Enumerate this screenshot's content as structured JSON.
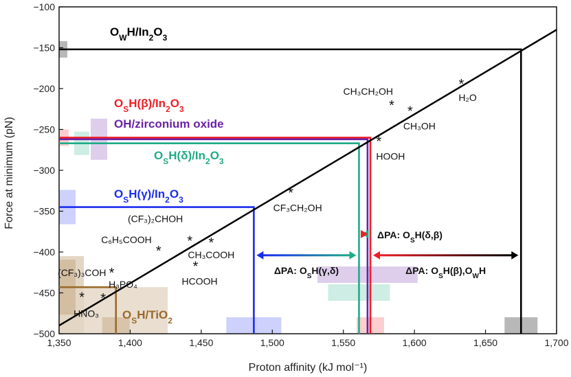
{
  "chart_data": {
    "type": "scatter",
    "xlabel": "Proton affinity (kJ mol⁻¹)",
    "ylabel": "Force at minimum (pN)",
    "xlim": [
      1350,
      1700
    ],
    "ylim": [
      -500,
      -100
    ],
    "x_ticks": [
      1350,
      1400,
      1450,
      1500,
      1550,
      1600,
      1650,
      1700
    ],
    "y_ticks": [
      -500,
      -450,
      -400,
      -350,
      -300,
      -250,
      -200,
      -150,
      -100
    ],
    "x_tick_labels": [
      "1,350",
      "1,400",
      "1,450",
      "1,500",
      "1,550",
      "1,600",
      "1,650",
      "1,700"
    ],
    "y_tick_labels": [
      "−500",
      "−450",
      "−400",
      "−350",
      "−300",
      "−250",
      "−200",
      "−150",
      "−100"
    ],
    "fit_line": {
      "x": [
        1350,
        1700
      ],
      "y": [
        -490,
        -128
      ]
    },
    "compounds": [
      {
        "label": "HNO₃",
        "x": 1366,
        "y": -456
      },
      {
        "label": "H₃PO₄",
        "x": 1381,
        "y": -457
      },
      {
        "label": "(CF₃)₃COH",
        "x": 1387,
        "y": -426
      },
      {
        "label": "C₆H₅COOH",
        "x": 1420,
        "y": -399
      },
      {
        "label": "(CF₃)₂CHOH",
        "x": 1442,
        "y": -387
      },
      {
        "label": "CH₃COOH",
        "x": 1457,
        "y": -389
      },
      {
        "label": "HCOOH",
        "x": 1446,
        "y": -418
      },
      {
        "label": "CF₃CH₂OH",
        "x": 1513,
        "y": -328
      },
      {
        "label": "HOOH",
        "x": 1575,
        "y": -265
      },
      {
        "label": "CH₃OH",
        "x": 1597,
        "y": -228
      },
      {
        "label": "CH₃CH₂OH",
        "x": 1584,
        "y": -221
      },
      {
        "label": "H₂O",
        "x": 1633,
        "y": -195
      }
    ],
    "series": [
      {
        "name": "OWH/In2O3",
        "label_main": "O",
        "label_sub": "W",
        "label_rest": "H/In",
        "label_sub2": "2",
        "label_o": "O",
        "label_sub3": "3",
        "color": "#000000",
        "y": -152,
        "x": 1675
      },
      {
        "name": "OSH(β)/In2O3",
        "label_main": "O",
        "label_sub": "S",
        "label_rest": "H(β)/In",
        "label_sub2": "2",
        "label_o": "O",
        "label_sub3": "3",
        "color": "#ee1f26",
        "y": -260,
        "x": 1569
      },
      {
        "name": "OH/zirconium oxide",
        "label_full": "OH/zirconium oxide",
        "color": "#6a22a8",
        "y": -262,
        "x": 1567
      },
      {
        "name": "OSH(δ)/In2O3",
        "label_main": "O",
        "label_sub": "S",
        "label_rest": "H(δ)/In",
        "label_sub2": "2",
        "label_o": "O",
        "label_sub3": "3",
        "color": "#1fab86",
        "y": -267,
        "x": 1561
      },
      {
        "name": "OSH(γ)/In2O3",
        "label_main": "O",
        "label_sub": "S",
        "label_rest": "H(γ)/In",
        "label_sub2": "2",
        "label_o": "O",
        "label_sub3": "3",
        "color": "#1a2cf0",
        "y": -345,
        "x": 1487
      },
      {
        "name": "OSH/TiO2",
        "label_main": "O",
        "label_sub": "S",
        "label_rest": "H/TiO",
        "label_sub2": "2",
        "color": "#9a6a2a",
        "y": -443,
        "x": 1390
      }
    ],
    "annotations": [
      {
        "text_pre": "ΔPA: O",
        "text_sub": "S",
        "text_post": "H(δ,β)",
        "x1": 1561,
        "x2": 1569,
        "y": -378,
        "color_start": "#1fab86",
        "color_end": "#ee1f26"
      },
      {
        "text_pre": "ΔPA: O",
        "text_sub": "S",
        "text_post": "H(γ,δ)",
        "x1": 1487,
        "x2": 1561,
        "y": -404,
        "color_start": "#1a2cf0",
        "color_end": "#1fab86"
      },
      {
        "text_pre": "ΔPA: O",
        "text_sub": "S",
        "text_post": "H(β),O",
        "text_sub2": "W",
        "text_post2": "H",
        "x1": 1569,
        "x2": 1675,
        "y": -404,
        "color_start": "#ee1f26",
        "color_end": "#000000"
      }
    ]
  }
}
